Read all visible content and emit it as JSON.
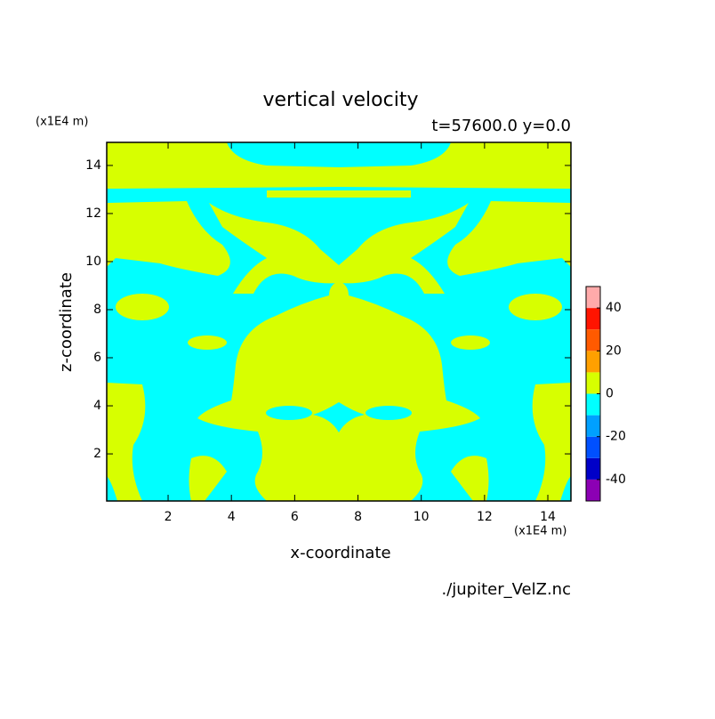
{
  "chart_data": {
    "type": "contour",
    "title": "vertical velocity",
    "subtitle": "t=57600.0 y=0.0",
    "x_label": "x-coordinate",
    "y_label": "z-coordinate",
    "x_unit": "(x1E4 m)",
    "y_unit": "(x1E4 m)",
    "source": "./jupiter_VelZ.nc",
    "xlim": [
      0.06,
      14.73
    ],
    "ylim": [
      0.04,
      14.96
    ],
    "xticks": [
      2,
      4,
      6,
      8,
      10,
      12,
      14
    ],
    "yticks": [
      2,
      4,
      6,
      8,
      10,
      12,
      14
    ],
    "colorbar": {
      "bins": [
        -50,
        -40,
        -30,
        -20,
        -10,
        0,
        10,
        20,
        30,
        40,
        50
      ],
      "colors": [
        "#8c00b4",
        "#0000c8",
        "#0050ff",
        "#00a0ff",
        "#00ffff",
        "#d7ff00",
        "#ffa000",
        "#ff5a00",
        "#ff1400",
        "#ffaaaa"
      ],
      "ticks": [
        -40,
        -20,
        0,
        20,
        40
      ]
    }
  }
}
